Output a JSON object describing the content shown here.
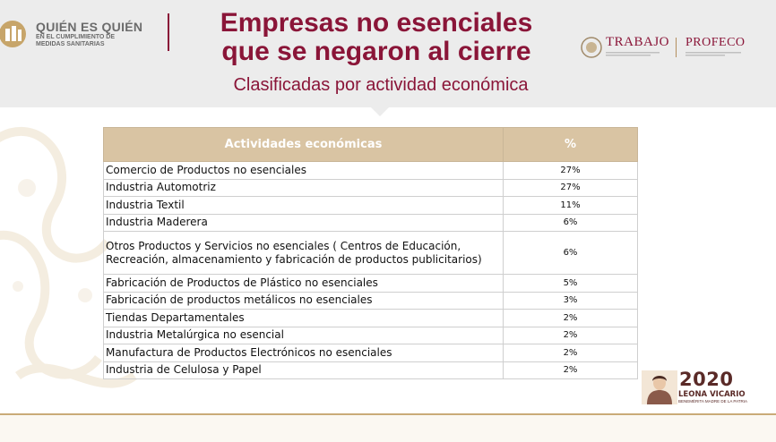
{
  "header": {
    "logo_title": "QUIÉN ES QUIÉN",
    "logo_subtitle": "EN EL CUMPLIMIENTO DE MEDIDAS SANITARIAS",
    "title_line1": "Empresas no esenciales",
    "title_line2": "que se negaron al cierre",
    "subtitle": "Clasificadas por actividad económica",
    "right_logo_1": "TRABAJO",
    "right_logo_2": "PROFECO"
  },
  "table": {
    "headers": [
      "Actividades económicas",
      "%"
    ],
    "rows": [
      {
        "activity": "Comercio de Productos no esenciales",
        "pct": "27%"
      },
      {
        "activity": "Industria Automotriz",
        "pct": "27%"
      },
      {
        "activity": "Industria Textil",
        "pct": "11%"
      },
      {
        "activity": "Industria Maderera",
        "pct": "6%"
      },
      {
        "activity": "Otros Productos y Servicios no esenciales ( Centros de Educación, Recreación, almacenamiento y fabricación de productos publicitarios)",
        "pct": "6%"
      },
      {
        "activity": "Fabricación de Productos de Plástico no esenciales",
        "pct": "5%"
      },
      {
        "activity": "Fabricación de productos metálicos no esenciales",
        "pct": "3%"
      },
      {
        "activity": "Tiendas Departamentales",
        "pct": "2%"
      },
      {
        "activity": "Industria Metalúrgica no esencial",
        "pct": "2%"
      },
      {
        "activity": "Manufactura de Productos Electrónicos no esenciales",
        "pct": "2%"
      },
      {
        "activity": "Industria de Celulosa y Papel",
        "pct": "2%"
      }
    ]
  },
  "footer_badge": {
    "year": "2020",
    "name": "LEONA VICARIO",
    "tagline": "BENEMÉRITA MADRE DE LA PATRIA"
  },
  "colors": {
    "brand": "#8a1538",
    "header_bg": "#ececec",
    "table_header": "#d9c4a3",
    "gold_line": "#c9ab78"
  }
}
